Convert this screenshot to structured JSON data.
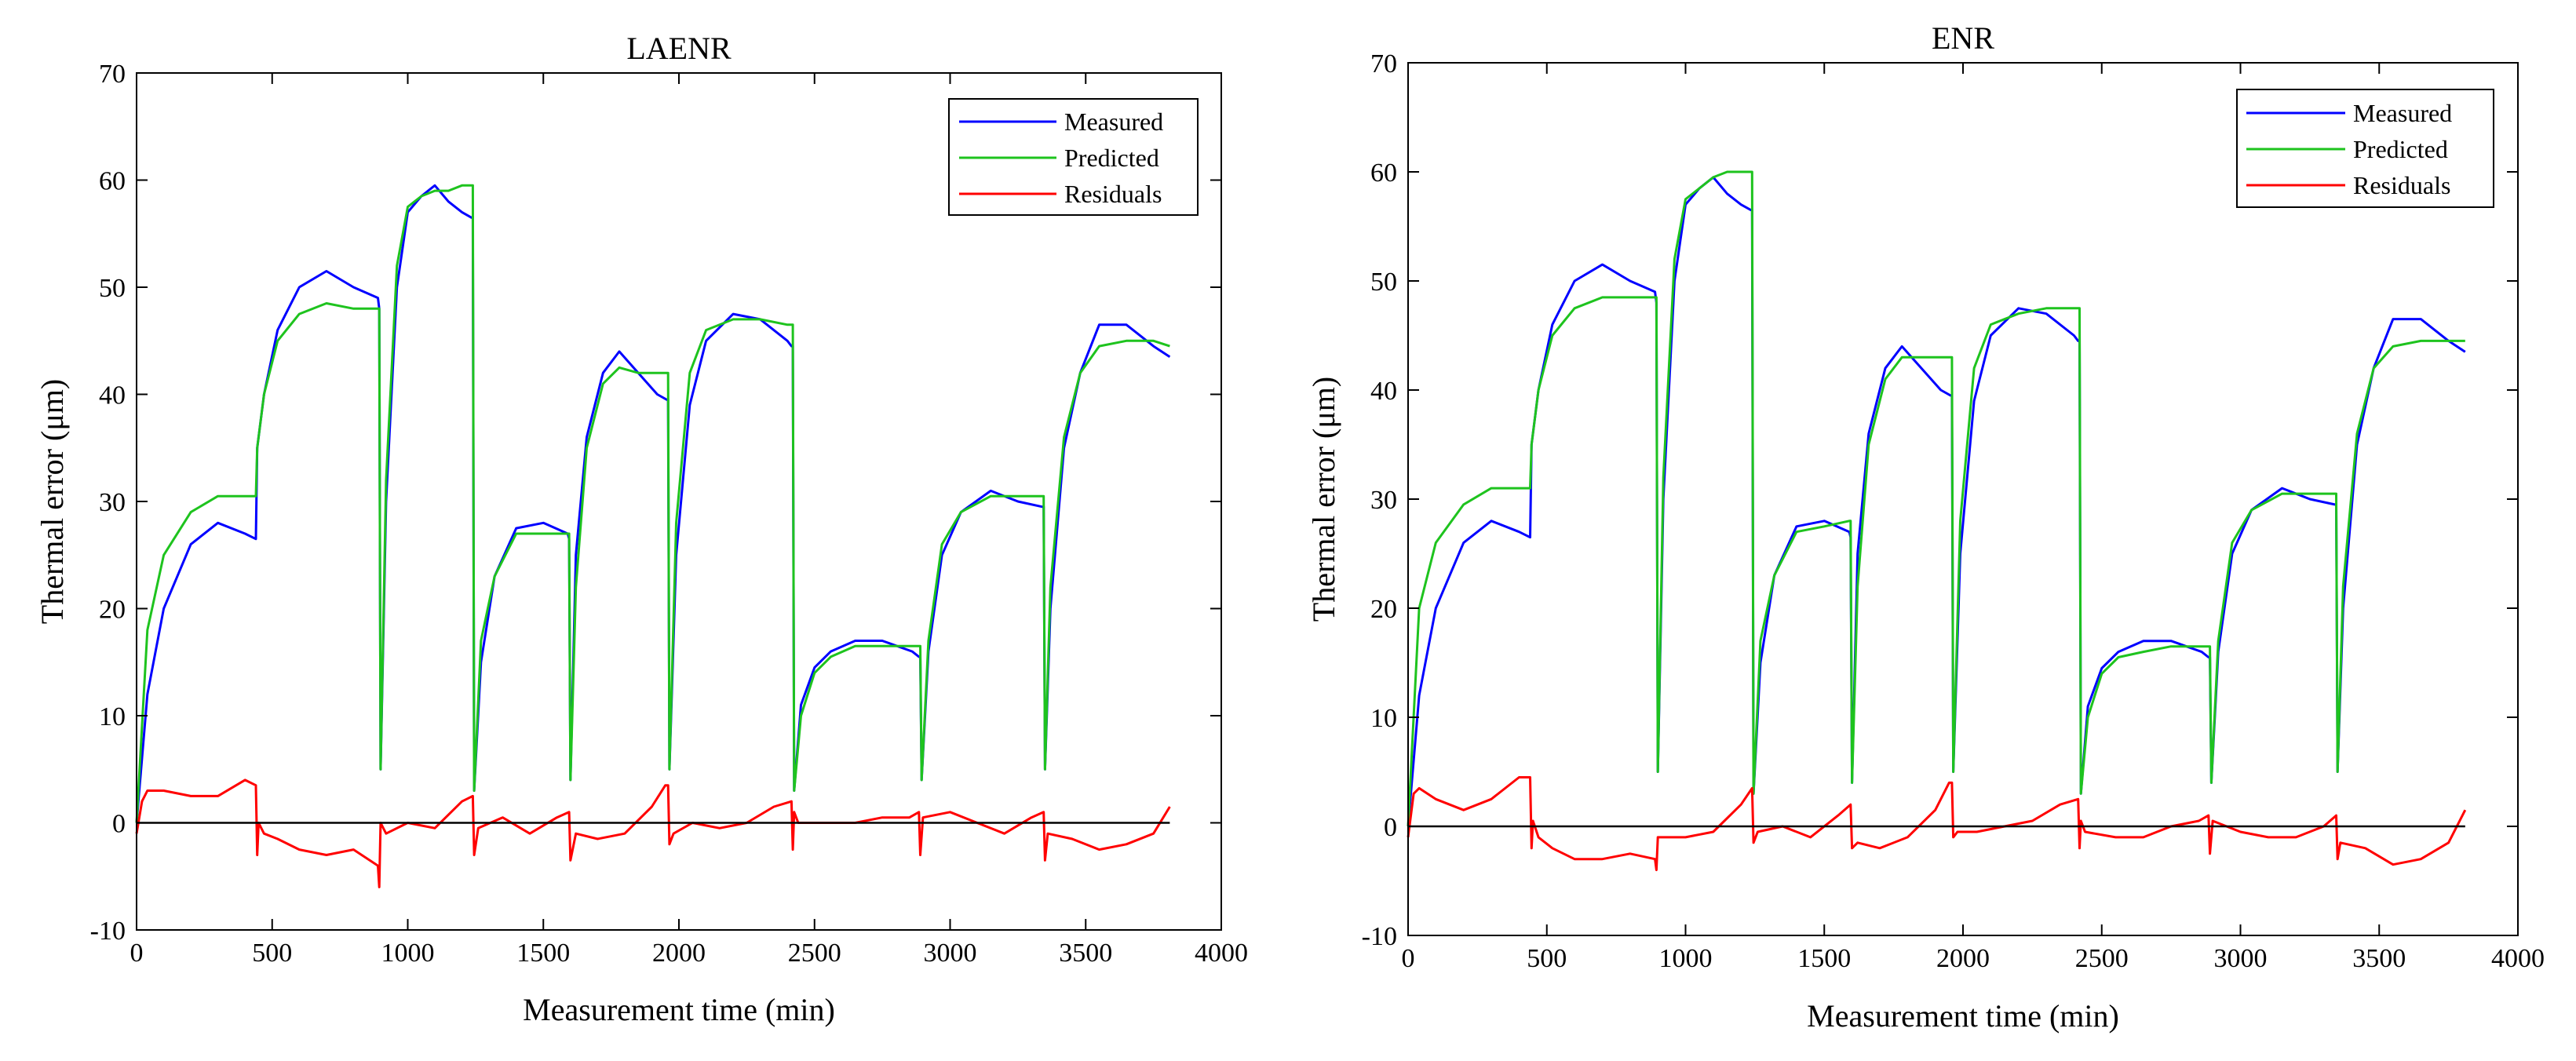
{
  "chart_data": [
    {
      "type": "line",
      "title": "LAENR",
      "xlabel": "Measurement time (min)",
      "ylabel": "Thermal error (μm)",
      "xlim": [
        0,
        4000
      ],
      "ylim": [
        -10,
        70
      ],
      "xticks": [
        0,
        500,
        1000,
        1500,
        2000,
        2500,
        3000,
        3500,
        4000
      ],
      "yticks": [
        -10,
        0,
        10,
        20,
        30,
        40,
        50,
        60,
        70
      ],
      "xtick_labels": [
        "0",
        "500",
        "1000",
        "1500",
        "2000",
        "2500",
        "3000",
        "3500",
        "4000"
      ],
      "ytick_labels": [
        "-10",
        "0",
        "10",
        "20",
        "30",
        "40",
        "50",
        "60",
        "70"
      ],
      "legend": {
        "position": "top-right",
        "entries": [
          "Measured",
          "Predicted",
          "Residuals"
        ]
      },
      "series": [
        {
          "name": "Measured",
          "color": "#0000ff",
          "x": [
            0,
            40,
            100,
            200,
            300,
            400,
            440,
            445,
            470,
            520,
            600,
            700,
            800,
            890,
            895,
            900,
            920,
            960,
            1000,
            1050,
            1100,
            1150,
            1200,
            1235,
            1240,
            1245,
            1270,
            1320,
            1400,
            1500,
            1590,
            1595,
            1600,
            1620,
            1660,
            1720,
            1780,
            1850,
            1920,
            1955,
            1960,
            1965,
            1990,
            2040,
            2100,
            2200,
            2300,
            2400,
            2415,
            2420,
            2425,
            2450,
            2500,
            2560,
            2650,
            2750,
            2860,
            2885,
            2890,
            2895,
            2920,
            2970,
            3040,
            3150,
            3250,
            3340,
            3345,
            3350,
            3370,
            3420,
            3480,
            3550,
            3650,
            3750,
            3810
          ],
          "y": [
            0,
            12,
            20,
            26,
            28,
            27,
            26.5,
            35,
            40,
            46,
            50,
            51.5,
            50,
            49,
            48,
            5,
            30,
            50,
            57,
            58.5,
            59.5,
            58,
            57,
            56.5,
            56.5,
            3,
            15,
            23,
            27.5,
            28,
            27,
            26.5,
            4,
            25,
            36,
            42,
            44,
            42,
            40,
            39.5,
            39.5,
            5,
            25,
            39,
            45,
            47.5,
            47,
            45,
            44.5,
            44.5,
            3,
            11,
            14.5,
            16,
            17,
            17,
            16,
            15.5,
            15.5,
            4,
            16,
            25,
            29,
            31,
            30,
            29.5,
            29.5,
            5,
            20,
            35,
            42,
            46.5,
            46.5,
            44.5,
            43.5
          ]
        },
        {
          "name": "Predicted",
          "color": "#1ec31e",
          "x": [
            0,
            40,
            100,
            200,
            300,
            400,
            440,
            445,
            470,
            520,
            600,
            700,
            800,
            890,
            895,
            900,
            920,
            960,
            1000,
            1050,
            1100,
            1150,
            1200,
            1235,
            1240,
            1245,
            1270,
            1320,
            1400,
            1500,
            1590,
            1595,
            1600,
            1620,
            1660,
            1720,
            1780,
            1850,
            1920,
            1955,
            1960,
            1965,
            1990,
            2040,
            2100,
            2200,
            2300,
            2400,
            2415,
            2420,
            2425,
            2450,
            2500,
            2560,
            2650,
            2750,
            2860,
            2885,
            2890,
            2895,
            2920,
            2970,
            3040,
            3150,
            3250,
            3340,
            3345,
            3350,
            3370,
            3420,
            3480,
            3550,
            3650,
            3750,
            3810
          ],
          "y": [
            0,
            18,
            25,
            29,
            30.5,
            30.5,
            30.5,
            35,
            40,
            45,
            47.5,
            48.5,
            48,
            48,
            48,
            5,
            32,
            52,
            57.5,
            58.5,
            59,
            59,
            59.5,
            59.5,
            59.5,
            3,
            17,
            23,
            27,
            27,
            27,
            27,
            4,
            22,
            35,
            41,
            42.5,
            42,
            42,
            42,
            42,
            5,
            28,
            42,
            46,
            47,
            47,
            46.5,
            46.5,
            46.5,
            3,
            10,
            14,
            15.5,
            16.5,
            16.5,
            16.5,
            16.5,
            16.5,
            4,
            17,
            26,
            29,
            30.5,
            30.5,
            30.5,
            30.5,
            5,
            22,
            36,
            42,
            44.5,
            45,
            45,
            44.5
          ]
        },
        {
          "name": "Residuals",
          "color": "#ff0000",
          "x": [
            0,
            20,
            40,
            100,
            200,
            300,
            400,
            440,
            445,
            450,
            470,
            520,
            600,
            700,
            800,
            890,
            895,
            900,
            920,
            1000,
            1100,
            1200,
            1240,
            1245,
            1260,
            1350,
            1450,
            1550,
            1595,
            1600,
            1620,
            1700,
            1800,
            1900,
            1950,
            1960,
            1965,
            1980,
            2050,
            2150,
            2250,
            2350,
            2415,
            2420,
            2425,
            2440,
            2550,
            2650,
            2750,
            2850,
            2885,
            2890,
            2900,
            3000,
            3100,
            3200,
            3300,
            3345,
            3350,
            3360,
            3450,
            3550,
            3650,
            3750,
            3810
          ],
          "y": [
            -1,
            2,
            3,
            3,
            2.5,
            2.5,
            4,
            3.5,
            -3,
            0,
            -1,
            -1.5,
            -2.5,
            -3,
            -2.5,
            -4,
            -6,
            0,
            -1,
            0,
            -0.5,
            2,
            2.5,
            -3,
            -0.5,
            0.5,
            -1,
            0.5,
            1,
            -3.5,
            -1,
            -1.5,
            -1,
            1.5,
            3.5,
            3.5,
            -2,
            -1,
            0,
            -0.5,
            0,
            1.5,
            2,
            -2.5,
            1,
            0,
            0,
            0,
            0.5,
            0.5,
            1,
            -3,
            0.5,
            1,
            0,
            -1,
            0.5,
            1,
            -3.5,
            -1,
            -1.5,
            -2.5,
            -2,
            -1,
            1.5
          ]
        },
        {
          "name": "zero line",
          "color": "#000000",
          "x": [
            0,
            3810
          ],
          "y": [
            0,
            0
          ]
        }
      ]
    },
    {
      "type": "line",
      "title": "ENR",
      "xlabel": "Measurement time (min)",
      "ylabel": "Thermal error (μm)",
      "xlim": [
        0,
        4000
      ],
      "ylim": [
        -10,
        70
      ],
      "xticks": [
        0,
        500,
        1000,
        1500,
        2000,
        2500,
        3000,
        3500,
        4000
      ],
      "yticks": [
        -10,
        0,
        10,
        20,
        30,
        40,
        50,
        60,
        70
      ],
      "xtick_labels": [
        "0",
        "500",
        "1000",
        "1500",
        "2000",
        "2500",
        "3000",
        "3500",
        "4000"
      ],
      "ytick_labels": [
        "-10",
        "0",
        "10",
        "20",
        "30",
        "40",
        "50",
        "60",
        "70"
      ],
      "legend": {
        "position": "top-right",
        "entries": [
          "Measured",
          "Predicted",
          "Residuals"
        ]
      },
      "series": [
        {
          "name": "Measured",
          "color": "#0000ff",
          "x": [
            0,
            40,
            100,
            200,
            300,
            400,
            440,
            445,
            470,
            520,
            600,
            700,
            800,
            890,
            895,
            900,
            920,
            960,
            1000,
            1050,
            1100,
            1150,
            1200,
            1235,
            1240,
            1245,
            1270,
            1320,
            1400,
            1500,
            1590,
            1595,
            1600,
            1620,
            1660,
            1720,
            1780,
            1850,
            1920,
            1955,
            1960,
            1965,
            1990,
            2040,
            2100,
            2200,
            2300,
            2400,
            2415,
            2420,
            2425,
            2450,
            2500,
            2560,
            2650,
            2750,
            2860,
            2885,
            2890,
            2895,
            2920,
            2970,
            3040,
            3150,
            3250,
            3340,
            3345,
            3350,
            3370,
            3420,
            3480,
            3550,
            3650,
            3750,
            3810
          ],
          "y": [
            0,
            12,
            20,
            26,
            28,
            27,
            26.5,
            35,
            40,
            46,
            50,
            51.5,
            50,
            49,
            48,
            5,
            30,
            50,
            57,
            58.5,
            59.5,
            58,
            57,
            56.5,
            56.5,
            3,
            15,
            23,
            27.5,
            28,
            27,
            26.5,
            4,
            25,
            36,
            42,
            44,
            42,
            40,
            39.5,
            39.5,
            5,
            25,
            39,
            45,
            47.5,
            47,
            45,
            44.5,
            44.5,
            3,
            11,
            14.5,
            16,
            17,
            17,
            16,
            15.5,
            15.5,
            4,
            16,
            25,
            29,
            31,
            30,
            29.5,
            29.5,
            5,
            20,
            35,
            42,
            46.5,
            46.5,
            44.5,
            43.5
          ]
        },
        {
          "name": "Predicted",
          "color": "#1ec31e",
          "x": [
            0,
            40,
            100,
            200,
            300,
            400,
            440,
            445,
            470,
            520,
            600,
            700,
            800,
            890,
            895,
            900,
            920,
            960,
            1000,
            1050,
            1100,
            1150,
            1200,
            1235,
            1240,
            1245,
            1270,
            1320,
            1400,
            1500,
            1590,
            1595,
            1600,
            1620,
            1660,
            1720,
            1780,
            1850,
            1920,
            1955,
            1960,
            1965,
            1990,
            2040,
            2100,
            2200,
            2300,
            2400,
            2415,
            2420,
            2425,
            2450,
            2500,
            2560,
            2650,
            2750,
            2860,
            2885,
            2890,
            2895,
            2920,
            2970,
            3040,
            3150,
            3250,
            3340,
            3345,
            3350,
            3370,
            3420,
            3480,
            3550,
            3650,
            3750,
            3810
          ],
          "y": [
            0,
            20,
            26,
            29.5,
            31,
            31,
            31,
            35,
            40,
            45,
            47.5,
            48.5,
            48.5,
            48.5,
            48.5,
            5,
            32,
            52,
            57.5,
            58.5,
            59.5,
            60,
            60,
            60,
            60,
            3,
            17,
            23,
            27,
            27.5,
            28,
            28,
            4,
            22,
            35,
            41,
            43,
            43,
            43,
            43,
            43,
            5,
            28,
            42,
            46,
            47,
            47.5,
            47.5,
            47.5,
            47.5,
            3,
            10,
            14,
            15.5,
            16,
            16.5,
            16.5,
            16.5,
            16.5,
            4,
            17,
            26,
            29,
            30.5,
            30.5,
            30.5,
            30.5,
            5,
            22,
            36,
            42,
            44,
            44.5,
            44.5,
            44.5
          ]
        },
        {
          "name": "Residuals",
          "color": "#ff0000",
          "x": [
            0,
            20,
            40,
            100,
            200,
            300,
            400,
            440,
            445,
            450,
            470,
            520,
            600,
            700,
            800,
            890,
            895,
            900,
            920,
            1000,
            1100,
            1200,
            1240,
            1245,
            1260,
            1350,
            1450,
            1550,
            1595,
            1600,
            1620,
            1700,
            1800,
            1900,
            1950,
            1960,
            1965,
            1980,
            2050,
            2150,
            2250,
            2350,
            2415,
            2420,
            2425,
            2440,
            2550,
            2650,
            2750,
            2850,
            2885,
            2890,
            2900,
            3000,
            3100,
            3200,
            3300,
            3345,
            3350,
            3360,
            3450,
            3550,
            3650,
            3750,
            3810
          ],
          "y": [
            -1,
            3,
            3.5,
            2.5,
            1.5,
            2.5,
            4.5,
            4.5,
            -2,
            0.5,
            -1,
            -2,
            -3,
            -3,
            -2.5,
            -3,
            -4,
            -1,
            -1,
            -1,
            -0.5,
            2,
            3.5,
            -1.5,
            -0.5,
            0,
            -1,
            1,
            2,
            -2,
            -1.5,
            -2,
            -1,
            1.5,
            4,
            4,
            -1,
            -0.5,
            -0.5,
            0,
            0.5,
            2,
            2.5,
            -2,
            0.5,
            -0.5,
            -1,
            -1,
            0,
            0.5,
            1,
            -2.5,
            0.5,
            -0.5,
            -1,
            -1,
            0,
            1,
            -3,
            -1.5,
            -2,
            -3.5,
            -3,
            -1.5,
            1.5
          ]
        },
        {
          "name": "zero line",
          "color": "#000000",
          "x": [
            0,
            3810
          ],
          "y": [
            0,
            0
          ]
        }
      ]
    }
  ]
}
